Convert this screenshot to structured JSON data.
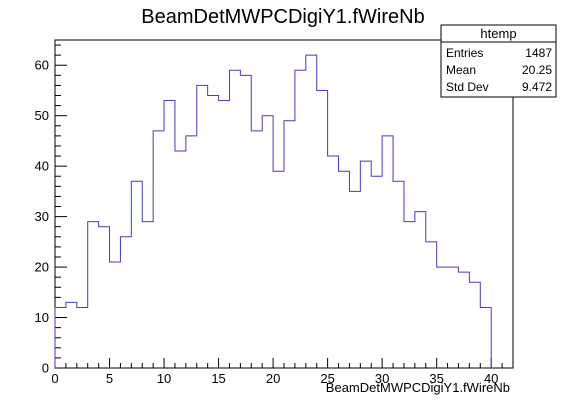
{
  "chart_data": {
    "type": "bar",
    "title": "BeamDetMWPCDigiY1.fWireNb",
    "xlabel": "BeamDetMWPCDigiY1.fWireNb",
    "ylabel": "",
    "xlim": [
      0,
      42
    ],
    "ylim": [
      0,
      65
    ],
    "x_ticks": [
      "0",
      "5",
      "10",
      "15",
      "20",
      "25",
      "30",
      "35",
      "40"
    ],
    "y_ticks": [
      "0",
      "10",
      "20",
      "30",
      "40",
      "50",
      "60"
    ],
    "bin_width": 1,
    "values": [
      12,
      13,
      12,
      29,
      28,
      21,
      26,
      37,
      29,
      47,
      53,
      43,
      46,
      56,
      54,
      53,
      59,
      58,
      47,
      50,
      39,
      49,
      59,
      62,
      55,
      42,
      39,
      35,
      41,
      38,
      46,
      37,
      29,
      31,
      25,
      20,
      20,
      19,
      17,
      12
    ],
    "line_color": "#3f3fbf",
    "stats_box": {
      "title": "htemp",
      "rows": [
        {
          "label": "Entries",
          "value": "1487"
        },
        {
          "label": "Mean",
          "value": "20.25"
        },
        {
          "label": "Std Dev",
          "value": "9.472"
        }
      ]
    }
  }
}
